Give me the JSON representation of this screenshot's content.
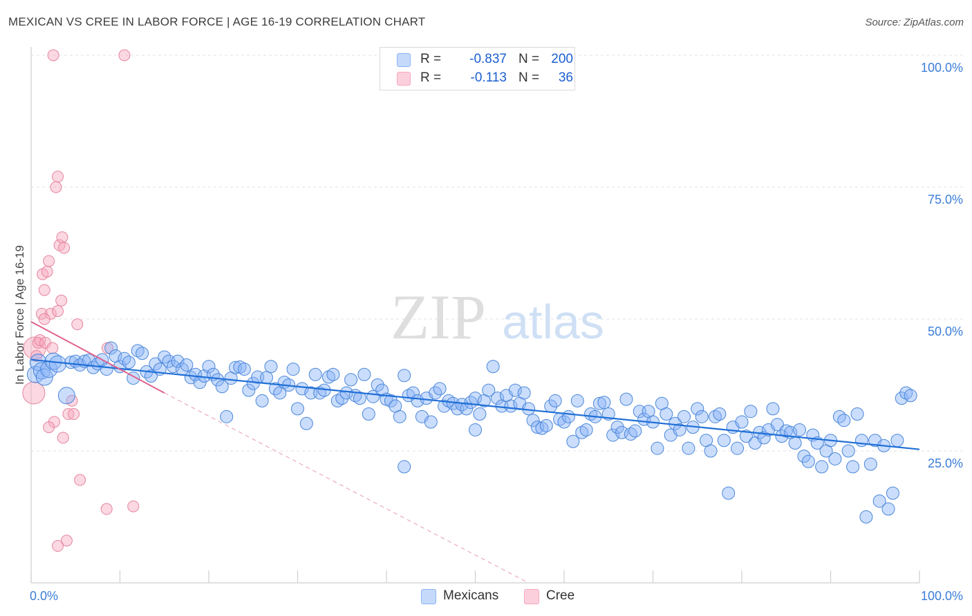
{
  "title": "MEXICAN VS CREE IN LABOR FORCE | AGE 16-19 CORRELATION CHART",
  "source": "Source: ZipAtlas.com",
  "watermark": {
    "zip": "ZIP",
    "atlas": "atlas"
  },
  "legend": {
    "rows": [
      {
        "label": "R =",
        "r_value": "-0.837",
        "n_label": "N =",
        "n_value": "200",
        "color": "#8ab4f8"
      },
      {
        "label": "R =",
        "r_value": "-0.113",
        "n_label": "N =",
        "n_value": "36",
        "color": "#f7a8bf"
      }
    ]
  },
  "bottom_legend": [
    {
      "label": "Mexicans",
      "color": "#8ab4f8"
    },
    {
      "label": "Cree",
      "color": "#f7a8bf"
    }
  ],
  "chart_data": {
    "type": "scatter",
    "title": "MEXICAN VS CREE IN LABOR FORCE | AGE 16-19 CORRELATION CHART",
    "xlabel": "",
    "ylabel": "In Labor Force | Age 16-19",
    "xlim": [
      0,
      100
    ],
    "ylim": [
      0,
      100
    ],
    "x_tick_labels": [
      "0.0%",
      "100.0%"
    ],
    "y_tick_labels": [
      "100.0%",
      "75.0%",
      "50.0%",
      "25.0%"
    ],
    "y_ticks": [
      100,
      75,
      50,
      25
    ],
    "grid": true,
    "legend_position": "top-center",
    "series": [
      {
        "name": "Mexicans",
        "color": "#8ab4f8",
        "stroke": "#4a86d8",
        "trend": {
          "x0": 0,
          "y0": 42.3,
          "x1": 100,
          "y1": 25.3,
          "color": "#1f6fd6"
        },
        "points": [
          [
            0.5,
            39.5
          ],
          [
            0.8,
            41.8
          ],
          [
            1.2,
            40.2
          ],
          [
            1.5,
            39.0
          ],
          [
            2.0,
            40.5
          ],
          [
            2.5,
            42.0
          ],
          [
            3.0,
            41.5
          ],
          [
            4.0,
            35.5
          ],
          [
            4.5,
            41.8
          ],
          [
            5.0,
            42.0
          ],
          [
            5.5,
            41.3
          ],
          [
            6.0,
            42.0
          ],
          [
            6.5,
            42.2
          ],
          [
            7.0,
            40.8
          ],
          [
            7.5,
            41.5
          ],
          [
            8.0,
            42.3
          ],
          [
            8.5,
            40.5
          ],
          [
            9.0,
            44.5
          ],
          [
            9.5,
            43.0
          ],
          [
            10.0,
            41.0
          ],
          [
            10.5,
            42.5
          ],
          [
            11.0,
            41.8
          ],
          [
            11.5,
            38.8
          ],
          [
            12.0,
            44.0
          ],
          [
            12.5,
            43.5
          ],
          [
            13.0,
            40.0
          ],
          [
            13.5,
            39.2
          ],
          [
            14.0,
            41.5
          ],
          [
            14.5,
            40.5
          ],
          [
            15.0,
            42.8
          ],
          [
            15.5,
            42.0
          ],
          [
            16.0,
            41.0
          ],
          [
            16.5,
            42.0
          ],
          [
            17.0,
            40.5
          ],
          [
            17.5,
            41.3
          ],
          [
            18.0,
            38.9
          ],
          [
            18.5,
            39.5
          ],
          [
            19.0,
            38.0
          ],
          [
            19.5,
            39.2
          ],
          [
            20.0,
            41.0
          ],
          [
            20.5,
            39.5
          ],
          [
            21.0,
            38.5
          ],
          [
            21.5,
            37.2
          ],
          [
            22.0,
            31.5
          ],
          [
            22.5,
            38.8
          ],
          [
            23.0,
            40.8
          ],
          [
            23.5,
            40.9
          ],
          [
            24.0,
            40.5
          ],
          [
            24.5,
            36.5
          ],
          [
            25.0,
            37.8
          ],
          [
            25.5,
            39.0
          ],
          [
            26.0,
            34.5
          ],
          [
            26.5,
            38.9
          ],
          [
            27.0,
            41.0
          ],
          [
            27.5,
            36.8
          ],
          [
            28.0,
            36.0
          ],
          [
            28.5,
            38.0
          ],
          [
            29.0,
            37.5
          ],
          [
            29.5,
            40.5
          ],
          [
            30.0,
            33.0
          ],
          [
            30.5,
            36.8
          ],
          [
            31.0,
            30.2
          ],
          [
            31.5,
            36.0
          ],
          [
            32.0,
            39.5
          ],
          [
            32.5,
            36.0
          ],
          [
            33.0,
            36.5
          ],
          [
            33.5,
            39.0
          ],
          [
            34.0,
            39.5
          ],
          [
            34.5,
            34.5
          ],
          [
            35.0,
            35.0
          ],
          [
            35.5,
            36.0
          ],
          [
            36.0,
            38.5
          ],
          [
            36.5,
            35.5
          ],
          [
            37.0,
            35.0
          ],
          [
            37.5,
            39.5
          ],
          [
            38.0,
            32.0
          ],
          [
            38.5,
            35.3
          ],
          [
            39.0,
            37.5
          ],
          [
            39.5,
            36.5
          ],
          [
            40.0,
            34.8
          ],
          [
            40.5,
            34.5
          ],
          [
            41.0,
            33.5
          ],
          [
            41.5,
            31.5
          ],
          [
            42.0,
            39.3
          ],
          [
            42.5,
            35.5
          ],
          [
            43.0,
            36.0
          ],
          [
            43.5,
            34.5
          ],
          [
            44.0,
            31.5
          ],
          [
            44.5,
            35.0
          ],
          [
            45.0,
            30.5
          ],
          [
            45.5,
            36.0
          ],
          [
            46.0,
            36.8
          ],
          [
            46.5,
            33.5
          ],
          [
            47.0,
            34.5
          ],
          [
            47.5,
            34.0
          ],
          [
            48.0,
            33.0
          ],
          [
            48.5,
            33.8
          ],
          [
            49.0,
            33.0
          ],
          [
            49.5,
            34.2
          ],
          [
            50.0,
            35.0
          ],
          [
            50.5,
            32.0
          ],
          [
            51.0,
            34.5
          ],
          [
            51.5,
            36.5
          ],
          [
            52.0,
            41.0
          ],
          [
            52.5,
            35.0
          ],
          [
            53.0,
            33.5
          ],
          [
            53.5,
            35.5
          ],
          [
            54.0,
            33.5
          ],
          [
            54.5,
            36.5
          ],
          [
            55.0,
            34.0
          ],
          [
            55.5,
            36.0
          ],
          [
            56.0,
            33.0
          ],
          [
            56.5,
            30.8
          ],
          [
            57.0,
            29.5
          ],
          [
            57.5,
            29.3
          ],
          [
            58.0,
            29.8
          ],
          [
            58.5,
            33.5
          ],
          [
            59.0,
            34.5
          ],
          [
            59.5,
            31.0
          ],
          [
            60.0,
            30.5
          ],
          [
            60.5,
            31.5
          ],
          [
            61.0,
            26.8
          ],
          [
            61.5,
            34.5
          ],
          [
            62.0,
            28.5
          ],
          [
            62.5,
            29.0
          ],
          [
            63.0,
            32.0
          ],
          [
            63.5,
            31.5
          ],
          [
            64.0,
            34.0
          ],
          [
            64.5,
            34.2
          ],
          [
            65.0,
            32.0
          ],
          [
            65.5,
            28.0
          ],
          [
            66.0,
            29.5
          ],
          [
            66.5,
            28.5
          ],
          [
            67.0,
            34.8
          ],
          [
            67.5,
            28.2
          ],
          [
            68.0,
            28.8
          ],
          [
            68.5,
            32.5
          ],
          [
            69.0,
            31.0
          ],
          [
            69.5,
            32.5
          ],
          [
            70.0,
            30.5
          ],
          [
            70.5,
            25.5
          ],
          [
            71.0,
            34.0
          ],
          [
            71.5,
            32.0
          ],
          [
            72.0,
            28.0
          ],
          [
            72.5,
            30.2
          ],
          [
            73.0,
            29.0
          ],
          [
            73.5,
            31.5
          ],
          [
            74.0,
            25.5
          ],
          [
            74.5,
            29.5
          ],
          [
            75.0,
            33.0
          ],
          [
            75.5,
            31.5
          ],
          [
            76.0,
            27.0
          ],
          [
            76.5,
            25.0
          ],
          [
            77.0,
            31.5
          ],
          [
            77.5,
            32.0
          ],
          [
            78.0,
            27.0
          ],
          [
            78.5,
            17.0
          ],
          [
            79.0,
            29.5
          ],
          [
            79.5,
            25.5
          ],
          [
            80.0,
            30.5
          ],
          [
            80.5,
            27.8
          ],
          [
            81.0,
            32.5
          ],
          [
            81.5,
            26.5
          ],
          [
            82.0,
            28.5
          ],
          [
            82.5,
            27.5
          ],
          [
            83.0,
            29.0
          ],
          [
            83.5,
            33.0
          ],
          [
            84.0,
            30.0
          ],
          [
            84.5,
            27.8
          ],
          [
            85.0,
            28.8
          ],
          [
            85.5,
            28.5
          ],
          [
            86.0,
            26.5
          ],
          [
            86.5,
            29.0
          ],
          [
            87.0,
            24.0
          ],
          [
            87.5,
            23.0
          ],
          [
            88.0,
            28.0
          ],
          [
            88.5,
            26.5
          ],
          [
            89.0,
            22.0
          ],
          [
            89.5,
            25.0
          ],
          [
            90.0,
            27.0
          ],
          [
            90.5,
            23.5
          ],
          [
            91.0,
            31.5
          ],
          [
            91.5,
            30.8
          ],
          [
            92.0,
            25.0
          ],
          [
            92.5,
            22.0
          ],
          [
            93.0,
            32.0
          ],
          [
            93.5,
            27.0
          ],
          [
            94.0,
            12.5
          ],
          [
            94.5,
            22.5
          ],
          [
            95.0,
            27.0
          ],
          [
            95.5,
            15.5
          ],
          [
            96.0,
            26.0
          ],
          [
            96.5,
            14.0
          ],
          [
            97.0,
            17.0
          ],
          [
            97.5,
            27.0
          ],
          [
            98.0,
            35.0
          ],
          [
            98.5,
            36.0
          ],
          [
            99.0,
            35.5
          ],
          [
            42.0,
            22.0
          ],
          [
            50.0,
            29.0
          ]
        ]
      },
      {
        "name": "Cree",
        "color": "#f7a8bf",
        "stroke": "#e6849f",
        "trend": {
          "x0": 0,
          "y0": 49.5,
          "x1": 15,
          "y1": 36.0,
          "color": "#e0628c",
          "dash_to": {
            "x": 56,
            "y": 0
          }
        },
        "points": [
          [
            0.3,
            36.0
          ],
          [
            0.4,
            44.5
          ],
          [
            0.6,
            43.0
          ],
          [
            0.8,
            45.5
          ],
          [
            1.0,
            46.0
          ],
          [
            1.2,
            51.0
          ],
          [
            1.3,
            58.5
          ],
          [
            1.5,
            55.5
          ],
          [
            1.6,
            45.5
          ],
          [
            1.8,
            59.0
          ],
          [
            2.0,
            61.0
          ],
          [
            2.2,
            51.0
          ],
          [
            2.4,
            44.5
          ],
          [
            2.5,
            100.0
          ],
          [
            2.6,
            30.5
          ],
          [
            2.8,
            75.0
          ],
          [
            3.0,
            77.0
          ],
          [
            3.0,
            51.5
          ],
          [
            3.2,
            64.0
          ],
          [
            3.4,
            53.5
          ],
          [
            3.5,
            65.5
          ],
          [
            3.6,
            27.5
          ],
          [
            3.7,
            63.5
          ],
          [
            4.0,
            8.0
          ],
          [
            4.2,
            32.0
          ],
          [
            4.6,
            34.5
          ],
          [
            4.8,
            32.0
          ],
          [
            5.2,
            49.0
          ],
          [
            5.5,
            19.5
          ],
          [
            2.0,
            29.5
          ],
          [
            8.5,
            14.0
          ],
          [
            8.6,
            44.5
          ],
          [
            10.5,
            100.0
          ],
          [
            11.5,
            14.5
          ],
          [
            3.0,
            7.0
          ],
          [
            1.5,
            50.0
          ]
        ]
      }
    ]
  }
}
